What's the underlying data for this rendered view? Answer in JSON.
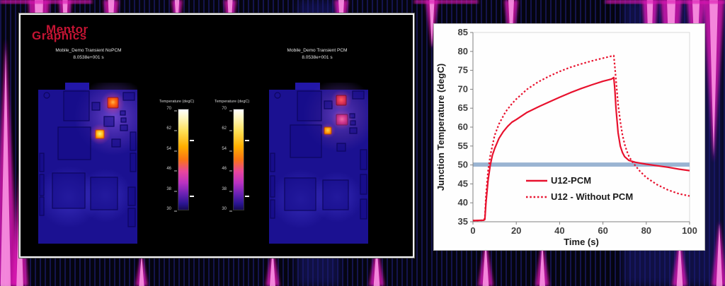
{
  "colors": {
    "accent_red": "#e8112d",
    "band_blue": "#9ab4d2",
    "wave_magenta": "#dd18b4",
    "logo_red": "#c41433"
  },
  "left_panel": {
    "logo": {
      "line1": "Mentor",
      "line2": "Graphics"
    },
    "views": [
      {
        "title": "Mobile_Demo Transient NoPCM",
        "time_label": "8.0538e+001 s"
      },
      {
        "title": "Mobile_Demo Transient PCM",
        "time_label": "8.0538e+001 s"
      }
    ],
    "legend": {
      "title": "Temperature (degC)",
      "ticks": [
        "70",
        "62",
        "54",
        "46",
        "38",
        "30"
      ]
    }
  },
  "chart_data": {
    "type": "line",
    "title": "",
    "xlabel": "Time (s)",
    "ylabel": "Junction Temperature (degC)",
    "xlim": [
      0,
      100
    ],
    "ylim": [
      35,
      85
    ],
    "xticks": [
      0,
      20,
      40,
      60,
      80,
      100
    ],
    "yticks": [
      35,
      40,
      45,
      50,
      55,
      60,
      65,
      70,
      75,
      80,
      85
    ],
    "grid": false,
    "legend_position": "inside-lower-middle",
    "band": {
      "y_center": 50.1,
      "y_half_width": 0.55,
      "color": "#9ab4d2"
    },
    "series": [
      {
        "name": "U12-PCM",
        "style": "solid",
        "color": "#e8112d",
        "points": [
          [
            0,
            35.3
          ],
          [
            5,
            35.4
          ],
          [
            5.5,
            35.6
          ],
          [
            6,
            40
          ],
          [
            7,
            46
          ],
          [
            8,
            50
          ],
          [
            9,
            52.6
          ],
          [
            10,
            54.3
          ],
          [
            12,
            57
          ],
          [
            14,
            58.8
          ],
          [
            16,
            60.2
          ],
          [
            18,
            61.3
          ],
          [
            20,
            62
          ],
          [
            25,
            63.9
          ],
          [
            30,
            65.3
          ],
          [
            35,
            66.6
          ],
          [
            40,
            67.9
          ],
          [
            45,
            69.1
          ],
          [
            50,
            70.2
          ],
          [
            55,
            71.2
          ],
          [
            60,
            72.1
          ],
          [
            64,
            72.7
          ],
          [
            65,
            73.1
          ],
          [
            65.5,
            70
          ],
          [
            66,
            65
          ],
          [
            67,
            58.5
          ],
          [
            68,
            55
          ],
          [
            69,
            53.3
          ],
          [
            70,
            52.2
          ],
          [
            72,
            51.2
          ],
          [
            75,
            50.7
          ],
          [
            80,
            50.2
          ],
          [
            85,
            49.8
          ],
          [
            90,
            49.4
          ],
          [
            95,
            48.9
          ],
          [
            100,
            48.5
          ]
        ]
      },
      {
        "name": "U12 - Without PCM",
        "style": "dotted",
        "color": "#e8112d",
        "points": [
          [
            0,
            35.3
          ],
          [
            5,
            35.4
          ],
          [
            5.5,
            36
          ],
          [
            6,
            42
          ],
          [
            7,
            48.5
          ],
          [
            8,
            52.5
          ],
          [
            10,
            57.8
          ],
          [
            12,
            60.8
          ],
          [
            15,
            64
          ],
          [
            18,
            66.2
          ],
          [
            20,
            67.4
          ],
          [
            25,
            70
          ],
          [
            30,
            71.9
          ],
          [
            35,
            73.4
          ],
          [
            40,
            74.7
          ],
          [
            45,
            75.8
          ],
          [
            50,
            76.7
          ],
          [
            55,
            77.5
          ],
          [
            60,
            78.2
          ],
          [
            65,
            78.9
          ],
          [
            65.5,
            76
          ],
          [
            66,
            72.5
          ],
          [
            67,
            66
          ],
          [
            68,
            61.5
          ],
          [
            69,
            58
          ],
          [
            70,
            55.5
          ],
          [
            71,
            53.7
          ],
          [
            72,
            52.3
          ],
          [
            73,
            51.3
          ],
          [
            74,
            50.5
          ],
          [
            75,
            49.8
          ],
          [
            77,
            48.4
          ],
          [
            80,
            46.7
          ],
          [
            85,
            44.8
          ],
          [
            90,
            43.4
          ],
          [
            95,
            42.4
          ],
          [
            100,
            41.8
          ]
        ]
      }
    ]
  }
}
